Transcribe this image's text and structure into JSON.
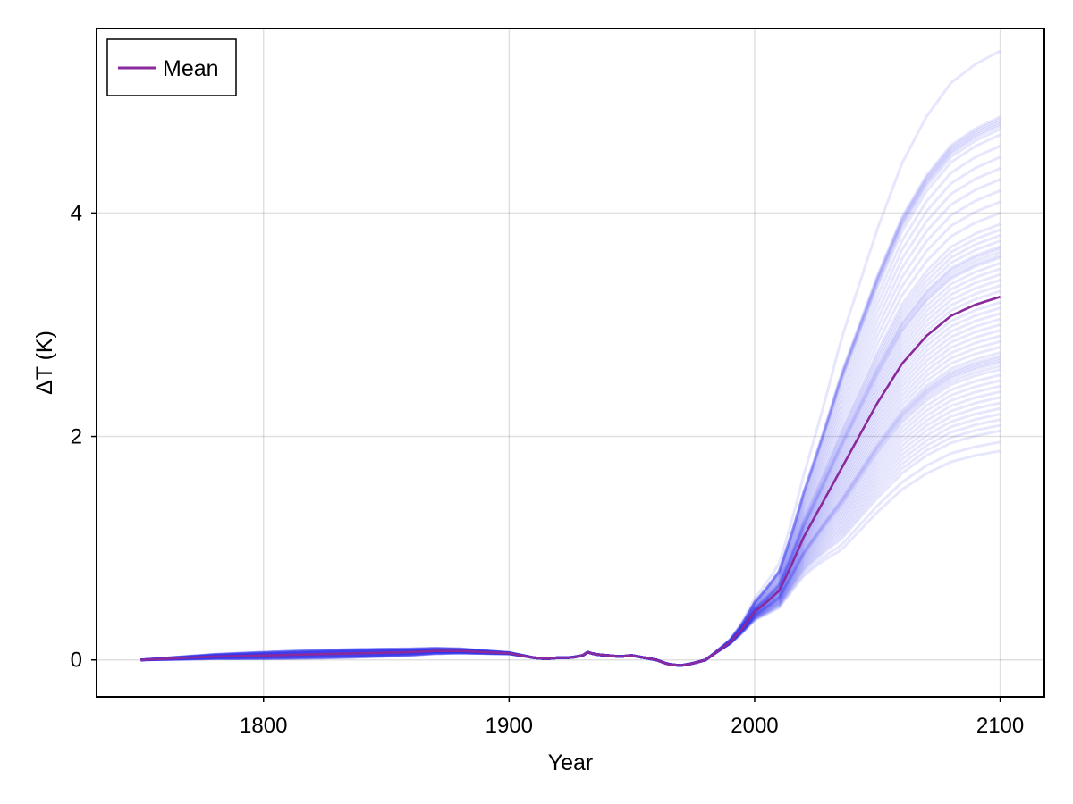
{
  "chart_data": {
    "type": "line",
    "title": "",
    "xlabel": "Year",
    "ylabel": "ΔT (K)",
    "xlim": [
      1732,
      2118
    ],
    "ylim": [
      -0.33,
      5.65
    ],
    "xticks": [
      1800,
      1900,
      2000,
      2100
    ],
    "yticks": [
      0,
      2,
      4
    ],
    "xtick_labels": [
      "1800",
      "1900",
      "2000",
      "2100"
    ],
    "ytick_labels": [
      "0",
      "2",
      "4"
    ],
    "grid": true,
    "legend": {
      "position": "top-left",
      "entries": [
        "Mean"
      ]
    },
    "colors": {
      "ensemble": "#2f2ff0",
      "mean": "#8b2a9c"
    },
    "ensemble": {
      "members": 60,
      "x_start": 1750,
      "x_end": 2100,
      "final_values_2100": [
        1.87,
        1.95,
        2.05,
        2.1,
        2.15,
        2.2,
        2.25,
        2.3,
        2.35,
        2.4,
        2.45,
        2.5,
        2.55,
        2.6,
        2.63,
        2.66,
        2.68,
        2.7,
        2.72,
        2.75,
        2.8,
        2.85,
        2.9,
        2.95,
        3.0,
        3.05,
        3.1,
        3.15,
        3.2,
        3.25,
        3.3,
        3.35,
        3.4,
        3.45,
        3.5,
        3.55,
        3.6,
        3.62,
        3.65,
        3.68,
        3.7,
        3.75,
        3.8,
        3.85,
        3.9,
        4.0,
        4.1,
        4.2,
        4.3,
        4.4,
        4.5,
        4.6,
        4.7,
        4.75,
        4.78,
        4.8,
        4.82,
        4.84,
        4.86,
        5.45
      ]
    },
    "series": [
      {
        "name": "Mean",
        "x": [
          1750,
          1760,
          1780,
          1800,
          1820,
          1840,
          1860,
          1870,
          1880,
          1890,
          1900,
          1905,
          1910,
          1915,
          1920,
          1925,
          1930,
          1932,
          1935,
          1940,
          1945,
          1950,
          1955,
          1960,
          1965,
          1970,
          1975,
          1980,
          1985,
          1990,
          1995,
          2000,
          2005,
          2010,
          2015,
          2020,
          2030,
          2040,
          2050,
          2060,
          2070,
          2080,
          2090,
          2100
        ],
        "y": [
          0.0,
          0.01,
          0.03,
          0.04,
          0.05,
          0.06,
          0.07,
          0.08,
          0.08,
          0.07,
          0.06,
          0.04,
          0.02,
          0.01,
          0.02,
          0.02,
          0.04,
          0.07,
          0.05,
          0.04,
          0.03,
          0.04,
          0.02,
          0.0,
          -0.04,
          -0.05,
          -0.03,
          0.0,
          0.08,
          0.16,
          0.28,
          0.43,
          0.52,
          0.62,
          0.85,
          1.1,
          1.5,
          1.9,
          2.3,
          2.65,
          2.9,
          3.08,
          3.18,
          3.25
        ]
      }
    ]
  }
}
